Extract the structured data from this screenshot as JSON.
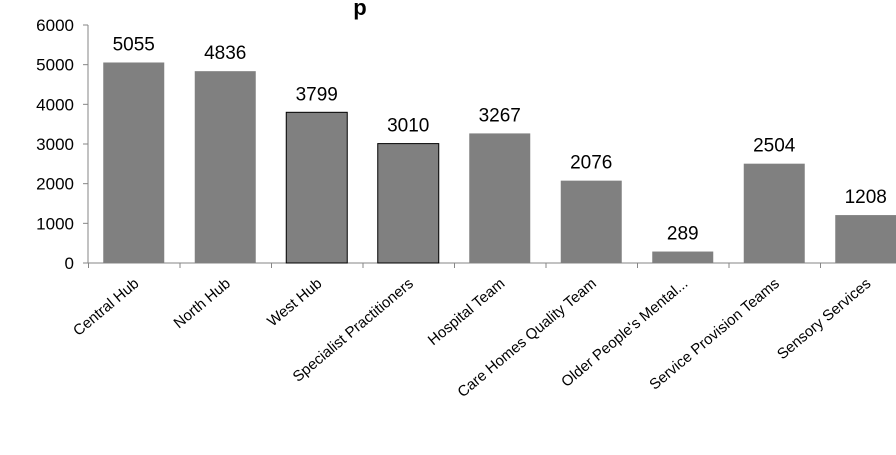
{
  "chart_data": {
    "type": "bar",
    "title": "p",
    "xlabel": "",
    "ylabel": "",
    "ylim": [
      0,
      6000
    ],
    "yticks": [
      0,
      1000,
      2000,
      3000,
      4000,
      5000,
      6000
    ],
    "grid": false,
    "legend": "none",
    "categories": [
      "Central Hub",
      "North Hub",
      "West Hub",
      "Specialist Practitioners",
      "Hospital Team",
      "Care Homes Quality Team",
      "Older People's Mental...",
      "Service Provision Teams",
      "Sensory Services"
    ],
    "values": [
      5055,
      4836,
      3799,
      3010,
      3267,
      2076,
      289,
      2504,
      1208
    ],
    "bar_color": "#808080",
    "outlined_bars": [
      2,
      3
    ],
    "outline_color": "#000000"
  }
}
